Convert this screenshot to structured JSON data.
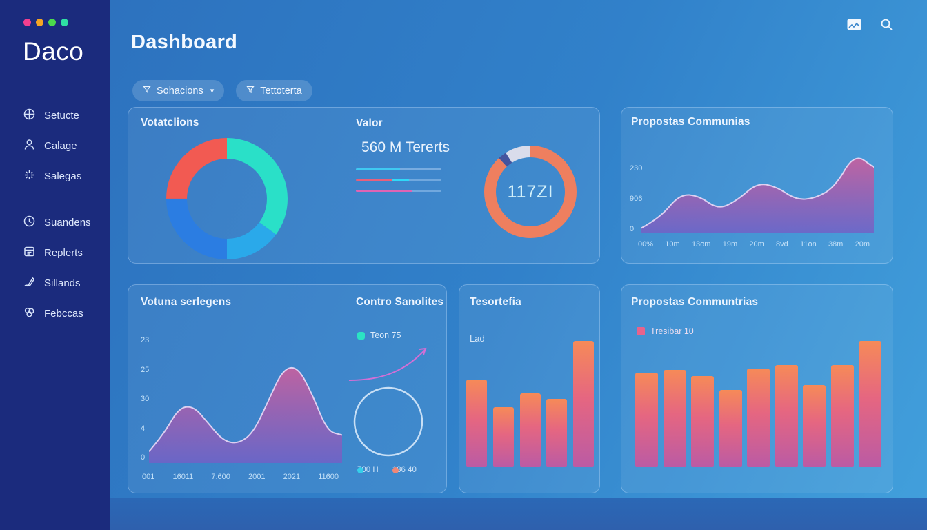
{
  "app": {
    "logo": "Daco"
  },
  "window_dots": [
    "#f23f8f",
    "#f5a623",
    "#4cd94c",
    "#2fe0a4"
  ],
  "sidebar": {
    "items": [
      {
        "label": "Setucte",
        "icon": "dashboard-icon"
      },
      {
        "label": "Calage",
        "icon": "user-icon"
      },
      {
        "label": "Salegas",
        "icon": "sparkle-icon"
      },
      {
        "label": "Suandens",
        "icon": "history-icon"
      },
      {
        "label": "Replerts",
        "icon": "report-icon"
      },
      {
        "label": "Sillands",
        "icon": "signature-icon"
      },
      {
        "label": "Febccas",
        "icon": "flower-icon"
      }
    ]
  },
  "header": {
    "title": "Dashboard",
    "filters": [
      {
        "label": "Sohacions",
        "has_dropdown": true,
        "icon": "filter-icon"
      },
      {
        "label": "Tettoterta",
        "has_dropdown": false,
        "icon": "filter-icon"
      }
    ],
    "action_icons": [
      "message-icon",
      "search-icon"
    ]
  },
  "cards": {
    "votacions": {
      "title": "Votatclions"
    },
    "valor": {
      "title": "Valor",
      "value": "560 M Tererts"
    },
    "gauge": {
      "value": "117ZI"
    },
    "propostas_top": {
      "title": "Propostas Communias"
    },
    "votuna": {
      "title": "Votuna serlegens"
    },
    "contro": {
      "title": "Contro Sanolites",
      "legend_top": "Teon 75",
      "legend_bottom": [
        {
          "label": "700 H"
        },
        {
          "label": "186 40"
        }
      ]
    },
    "tesortefia": {
      "title": "Tesortefia",
      "label": "Lad"
    },
    "propostas_bottom": {
      "title": "Propostas Communtrias",
      "legend": "Tresibar 10"
    }
  },
  "colors": {
    "sidebar_bg": "#1b2b7d",
    "donut_teal": "#2ae0c8",
    "donut_cyan": "#2aa9ea",
    "donut_blue": "#2b7de2",
    "donut_red": "#f25a52",
    "gauge_salmon": "#ee7f5f",
    "gauge_light": "#d9dceb",
    "gauge_notch": "#44549e",
    "bar_top": "#f68a58",
    "bar_mid": "#e56681",
    "bar_bottom": "#bb5ba4",
    "area_top": "#c4619f",
    "area_bottom": "#7261c6",
    "area_line": "#ead9f6",
    "legend_teal": "#2be3c3",
    "legend_cyan": "#35d0ea",
    "legend_salmon": "#ef8777",
    "legend_pink": "#e8638c",
    "arrow_pink": "#d36fd6"
  },
  "chart_data": [
    {
      "id": "votacions",
      "type": "pie",
      "segments": [
        {
          "pct": 35,
          "color": "#2ae0c8"
        },
        {
          "pct": 15,
          "color": "#2aa9ea"
        },
        {
          "pct": 25,
          "color": "#2b7de2"
        },
        {
          "pct": 25,
          "color": "#f25a52"
        }
      ],
      "title": "Votatclions",
      "start_angle_deg": 0,
      "legend_position": "none"
    },
    {
      "id": "valor-spark",
      "type": "sparkline-rows",
      "rows": [
        [
          {
            "color": "#3fc9f2",
            "w": 0.52
          },
          {
            "color": "rgba(190,220,250,0.45)",
            "w": 0.48
          }
        ],
        [
          {
            "color": "#e8607c",
            "w": 0.42
          },
          {
            "color": "#2fd9f8",
            "w": 0.2
          },
          {
            "color": "rgba(190,220,250,0.40)",
            "w": 0.38
          }
        ],
        [
          {
            "color": "#df64b4",
            "w": 0.66
          },
          {
            "color": "rgba(190,220,250,0.40)",
            "w": 0.34
          }
        ]
      ]
    },
    {
      "id": "gauge",
      "type": "donut-gauge",
      "value_label": "117ZI",
      "segments": [
        {
          "pct": 88,
          "color": "#ee7f5f"
        },
        {
          "pct": 3,
          "color": "#44549e"
        },
        {
          "pct": 9,
          "color": "#d9dceb"
        }
      ]
    },
    {
      "id": "propostas-top",
      "type": "area",
      "title": "Propostas Communias",
      "values": [
        6,
        19,
        48,
        46,
        29,
        41,
        62,
        57,
        41,
        43,
        57,
        98,
        81
      ],
      "y_ticks": [
        "230",
        "906",
        "0"
      ],
      "x_ticks": [
        "00%",
        "10m",
        "13om",
        "19m",
        "20m",
        "8vd",
        "11on",
        "38m",
        "20m"
      ],
      "ylim": [
        0,
        100
      ],
      "grid": false,
      "legend_position": "none"
    },
    {
      "id": "votuna",
      "type": "area",
      "title": "Votuna serlegens",
      "values": [
        12,
        30,
        57,
        59,
        41,
        23,
        20,
        31,
        63,
        97,
        100,
        71,
        33,
        29
      ],
      "y_ticks": [
        "23",
        "25",
        "30",
        "4",
        "0"
      ],
      "x_ticks": [
        "001",
        "16011",
        "7.600",
        "2001",
        "2021",
        "11600"
      ],
      "ylim": [
        0,
        100
      ],
      "grid": false,
      "legend_position": "none"
    },
    {
      "id": "tesortefia",
      "type": "bar",
      "title": "Tesortefia",
      "values": [
        69,
        47,
        58,
        54,
        100
      ],
      "ylim": [
        0,
        100
      ],
      "legend_position": "none"
    },
    {
      "id": "propostas-bottom",
      "type": "bar",
      "title": "Propostas Communtrias",
      "values": [
        75,
        77,
        72,
        61,
        78,
        81,
        65,
        81,
        100
      ],
      "ylim": [
        0,
        100
      ],
      "legend": "Tresibar 10",
      "legend_position": "top-left"
    },
    {
      "id": "contro",
      "type": "annotation",
      "title": "Contro Sanolites",
      "elements": [
        "rising-arrow-curve",
        "empty-circle-outline"
      ],
      "legend_top": "Teon 75",
      "legend_bottom": [
        "700 H",
        "186 40"
      ]
    }
  ]
}
